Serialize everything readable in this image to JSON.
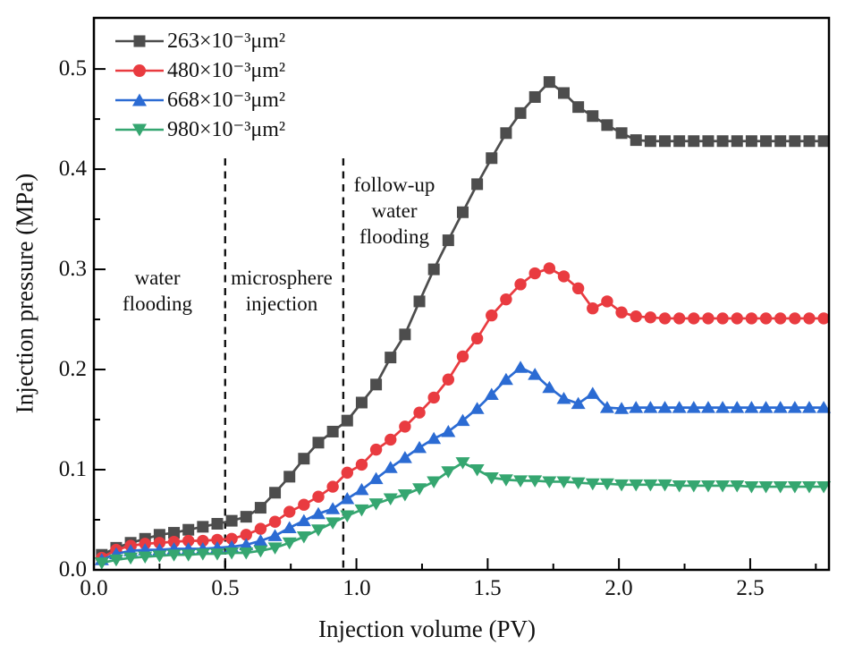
{
  "chart_data": {
    "type": "line",
    "title": "",
    "xlabel": "Injection volume (PV)",
    "ylabel": "Injection pressure (MPa)",
    "xlim": [
      0,
      2.8
    ],
    "ylim": [
      0,
      0.55
    ],
    "x_tick_labels": [
      "0.0",
      "0.5",
      "1.0",
      "1.5",
      "2.0",
      "2.5"
    ],
    "y_tick_labels": [
      "0.0",
      "0.1",
      "0.2",
      "0.3",
      "0.4",
      "0.5"
    ],
    "x_ticks": [
      0,
      0.5,
      1.0,
      1.5,
      2.0,
      2.5
    ],
    "y_ticks": [
      0,
      0.1,
      0.2,
      0.3,
      0.4,
      0.5
    ],
    "x_minor_ticks": [
      0.25,
      0.75,
      1.25,
      1.75,
      2.25,
      2.75
    ],
    "y_minor_ticks": [
      0.05,
      0.15,
      0.25,
      0.35,
      0.45
    ],
    "grid": false,
    "legend_position": "top-left-inside",
    "x": [
      0.03,
      0.085,
      0.14,
      0.195,
      0.25,
      0.305,
      0.36,
      0.415,
      0.47,
      0.525,
      0.58,
      0.635,
      0.69,
      0.745,
      0.8,
      0.855,
      0.91,
      0.965,
      1.02,
      1.075,
      1.13,
      1.185,
      1.24,
      1.295,
      1.35,
      1.405,
      1.46,
      1.515,
      1.57,
      1.625,
      1.68,
      1.735,
      1.79,
      1.845,
      1.9,
      1.955,
      2.01,
      2.065,
      2.12,
      2.175,
      2.23,
      2.285,
      2.34,
      2.395,
      2.45,
      2.505,
      2.56,
      2.615,
      2.67,
      2.725,
      2.78
    ],
    "series": [
      {
        "name": "263×10⁻³μm²",
        "marker": "square",
        "color": "#4d4d4d",
        "peak": {
          "x": 1.74,
          "y": 0.487
        },
        "plateau": 0.428,
        "values": [
          0.015,
          0.022,
          0.027,
          0.031,
          0.035,
          0.037,
          0.04,
          0.043,
          0.046,
          0.049,
          0.053,
          0.062,
          0.077,
          0.093,
          0.111,
          0.127,
          0.138,
          0.149,
          0.167,
          0.185,
          0.212,
          0.235,
          0.268,
          0.3,
          0.329,
          0.357,
          0.385,
          0.411,
          0.436,
          0.456,
          0.472,
          0.487,
          0.476,
          0.462,
          0.453,
          0.444,
          0.436,
          0.429,
          0.428,
          0.428,
          0.428,
          0.428,
          0.428,
          0.428,
          0.428,
          0.428,
          0.428,
          0.428,
          0.428,
          0.428,
          0.428
        ]
      },
      {
        "name": "480×10⁻³μm²",
        "marker": "circle",
        "color": "#e93b40",
        "peak": {
          "x": 1.7,
          "y": 0.301
        },
        "plateau": 0.251,
        "values": [
          0.012,
          0.02,
          0.024,
          0.026,
          0.027,
          0.028,
          0.029,
          0.029,
          0.03,
          0.031,
          0.035,
          0.041,
          0.048,
          0.058,
          0.065,
          0.073,
          0.083,
          0.097,
          0.105,
          0.12,
          0.13,
          0.143,
          0.157,
          0.172,
          0.19,
          0.213,
          0.231,
          0.254,
          0.27,
          0.285,
          0.296,
          0.301,
          0.293,
          0.281,
          0.261,
          0.268,
          0.257,
          0.253,
          0.252,
          0.251,
          0.251,
          0.251,
          0.251,
          0.251,
          0.251,
          0.251,
          0.251,
          0.251,
          0.251,
          0.251,
          0.251
        ]
      },
      {
        "name": "668×10⁻³μm²",
        "marker": "triangle-up",
        "color": "#2b6bd3",
        "peak": {
          "x": 1.62,
          "y": 0.202
        },
        "plateau": 0.162,
        "values": [
          0.01,
          0.016,
          0.019,
          0.02,
          0.02,
          0.021,
          0.021,
          0.021,
          0.022,
          0.023,
          0.025,
          0.029,
          0.034,
          0.042,
          0.049,
          0.056,
          0.061,
          0.071,
          0.08,
          0.091,
          0.102,
          0.112,
          0.122,
          0.131,
          0.138,
          0.149,
          0.161,
          0.175,
          0.19,
          0.202,
          0.195,
          0.182,
          0.171,
          0.166,
          0.176,
          0.162,
          0.161,
          0.162,
          0.162,
          0.162,
          0.162,
          0.162,
          0.162,
          0.162,
          0.162,
          0.162,
          0.162,
          0.162,
          0.162,
          0.162,
          0.162
        ]
      },
      {
        "name": "980×10⁻³μm²",
        "marker": "triangle-down",
        "color": "#35a670",
        "peak": {
          "x": 1.4,
          "y": 0.107
        },
        "plateau": 0.083,
        "values": [
          0.007,
          0.01,
          0.012,
          0.013,
          0.014,
          0.015,
          0.015,
          0.016,
          0.016,
          0.017,
          0.017,
          0.019,
          0.022,
          0.027,
          0.033,
          0.04,
          0.047,
          0.054,
          0.06,
          0.066,
          0.071,
          0.075,
          0.081,
          0.088,
          0.098,
          0.107,
          0.1,
          0.092,
          0.09,
          0.089,
          0.089,
          0.088,
          0.088,
          0.087,
          0.086,
          0.086,
          0.085,
          0.085,
          0.085,
          0.085,
          0.084,
          0.084,
          0.084,
          0.084,
          0.084,
          0.083,
          0.083,
          0.083,
          0.083,
          0.083,
          0.083
        ]
      }
    ],
    "phase_lines": {
      "style": "dashed-vertical",
      "color": "#111111",
      "x_values": [
        0.5,
        0.95
      ]
    }
  },
  "annotations": {
    "water_flooding": {
      "line1": "water",
      "line2": "flooding"
    },
    "microsphere_injection": {
      "line1": "microsphere",
      "line2": "injection"
    },
    "follow_up_water_flooding": {
      "line1": "follow-up",
      "line2": "water",
      "line3": "flooding"
    }
  }
}
